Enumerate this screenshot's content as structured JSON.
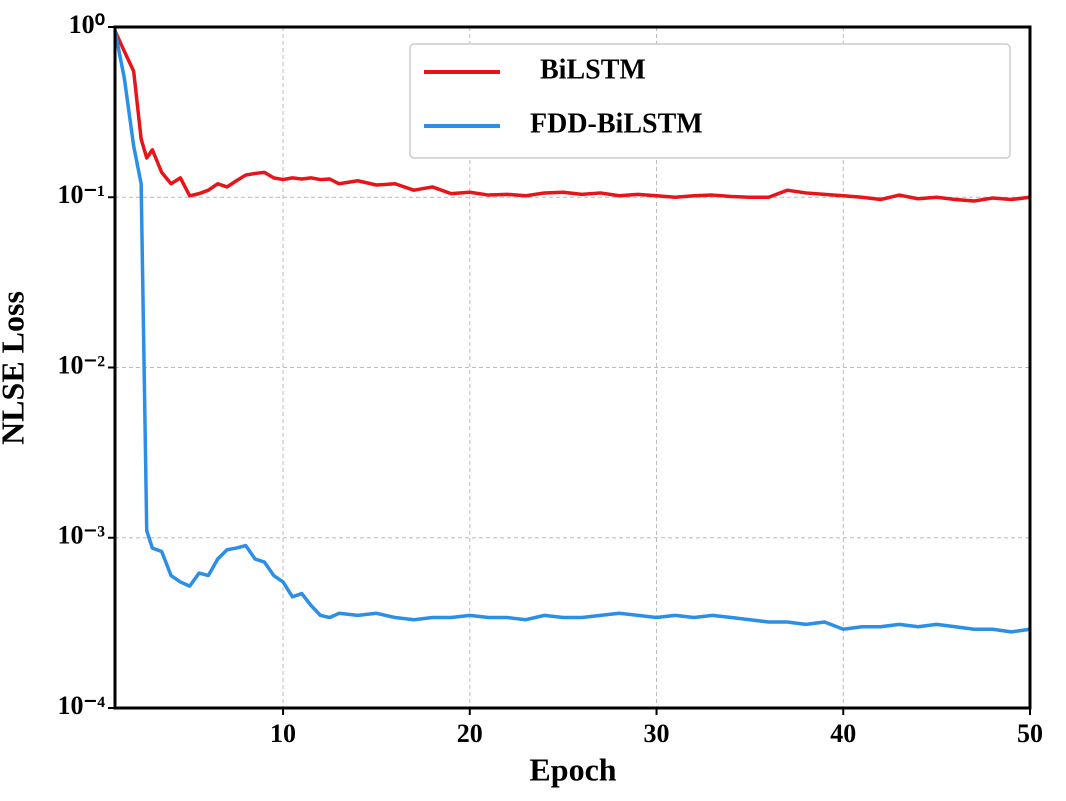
{
  "chart_data": {
    "type": "line",
    "xlabel": "Epoch",
    "ylabel": "NLSE Loss",
    "x": [
      1,
      1.5,
      2,
      2.4,
      2.7,
      3,
      3.5,
      4,
      4.5,
      5,
      5.5,
      6,
      6.5,
      7,
      7.5,
      8,
      8.5,
      9,
      9.5,
      10,
      10.5,
      11,
      11.5,
      12,
      12.5,
      13,
      14,
      15,
      16,
      17,
      18,
      19,
      20,
      21,
      22,
      23,
      24,
      25,
      26,
      27,
      28,
      29,
      30,
      31,
      32,
      33,
      34,
      35,
      36,
      37,
      38,
      39,
      40,
      41,
      42,
      43,
      44,
      45,
      46,
      47,
      48,
      49,
      50
    ],
    "series": [
      {
        "name": "BiLSTM",
        "color": "#e8141a",
        "values": [
          0.95,
          0.72,
          0.55,
          0.22,
          0.17,
          0.19,
          0.14,
          0.12,
          0.13,
          0.102,
          0.105,
          0.11,
          0.12,
          0.115,
          0.125,
          0.135,
          0.138,
          0.14,
          0.13,
          0.127,
          0.13,
          0.128,
          0.13,
          0.127,
          0.128,
          0.12,
          0.125,
          0.118,
          0.12,
          0.11,
          0.115,
          0.105,
          0.107,
          0.103,
          0.104,
          0.102,
          0.106,
          0.107,
          0.104,
          0.106,
          0.102,
          0.104,
          0.102,
          0.1,
          0.102,
          0.103,
          0.101,
          0.1,
          0.1,
          0.11,
          0.106,
          0.104,
          0.102,
          0.1,
          0.097,
          0.103,
          0.098,
          0.1,
          0.097,
          0.095,
          0.099,
          0.097,
          0.1
        ]
      },
      {
        "name": "FDD-BiLSTM",
        "color": "#2b8fe8",
        "values": [
          0.95,
          0.5,
          0.2,
          0.12,
          0.0011,
          0.00087,
          0.00083,
          0.0006,
          0.00055,
          0.00052,
          0.00062,
          0.0006,
          0.00075,
          0.00085,
          0.00087,
          0.0009,
          0.00075,
          0.00072,
          0.0006,
          0.00055,
          0.00045,
          0.00047,
          0.0004,
          0.00035,
          0.00034,
          0.00036,
          0.00035,
          0.00036,
          0.00034,
          0.00033,
          0.00034,
          0.00034,
          0.00035,
          0.00034,
          0.00034,
          0.00033,
          0.00035,
          0.00034,
          0.00034,
          0.00035,
          0.00036,
          0.00035,
          0.00034,
          0.00035,
          0.00034,
          0.00035,
          0.00034,
          0.00033,
          0.00032,
          0.00032,
          0.00031,
          0.00032,
          0.00029,
          0.0003,
          0.0003,
          0.00031,
          0.0003,
          0.00031,
          0.0003,
          0.00029,
          0.00029,
          0.00028,
          0.00029
        ]
      }
    ],
    "xlim": [
      1,
      50
    ],
    "xticks": [
      10,
      20,
      30,
      40,
      50
    ],
    "ylim": [
      0.0001,
      1
    ],
    "log_scale": true,
    "yticks": [
      {
        "value": 1,
        "label": "10⁰"
      },
      {
        "value": 0.1,
        "label": "10⁻¹"
      },
      {
        "value": 0.01,
        "label": "10⁻²"
      },
      {
        "value": 0.001,
        "label": "10⁻³"
      },
      {
        "value": 0.0001,
        "label": "10⁻⁴"
      }
    ],
    "grid": true,
    "legend": "upper center"
  }
}
